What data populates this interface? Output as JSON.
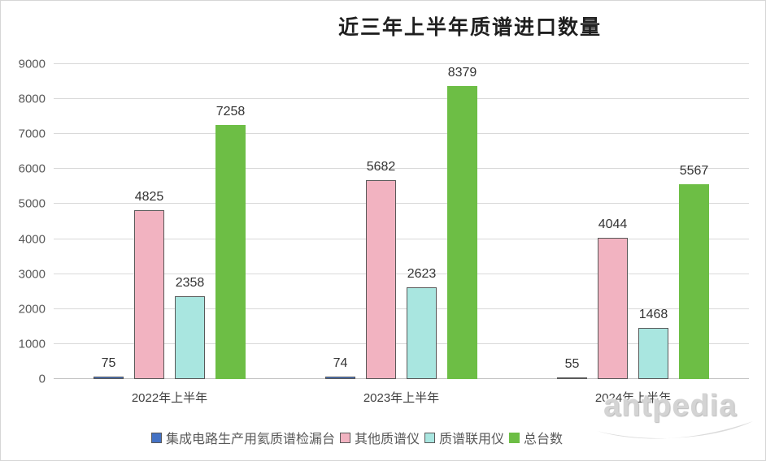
{
  "watermark": "antpedia",
  "chart_data": {
    "type": "bar",
    "title": "近三年上半年质谱进口数量",
    "categories": [
      "2022年上半年",
      "2023年上半年",
      "2024年上半年"
    ],
    "series": [
      {
        "name": "集成电路生产用氦质谱检漏台",
        "fill": "#4472C4",
        "border": "#595959",
        "values": [
          75,
          74,
          55
        ]
      },
      {
        "name": "其他质谱仪",
        "fill": "#F2B3C1",
        "border": "#595959",
        "values": [
          4825,
          5682,
          4044
        ]
      },
      {
        "name": "质谱联用仪",
        "fill": "#A9E6E0",
        "border": "#595959",
        "values": [
          2358,
          2623,
          1468
        ]
      },
      {
        "name": "总台数",
        "fill": "#6DBE45",
        "border": "#6DBE45",
        "values": [
          7258,
          8379,
          5567
        ]
      }
    ],
    "ylim": [
      0,
      9000
    ],
    "yticks": [
      0,
      1000,
      2000,
      3000,
      4000,
      5000,
      6000,
      7000,
      8000,
      9000
    ],
    "grid": true,
    "legend_position": "bottom",
    "data_labels": true,
    "xlabel": "",
    "ylabel": "",
    "colors": {
      "gridline": "#d9d9d9",
      "axis_line": "#c3c3c3",
      "tick_text": "#595959",
      "label_text": "#333333",
      "title_text": "#1f1f1f",
      "watermark_text": "#d4d4d4"
    }
  }
}
